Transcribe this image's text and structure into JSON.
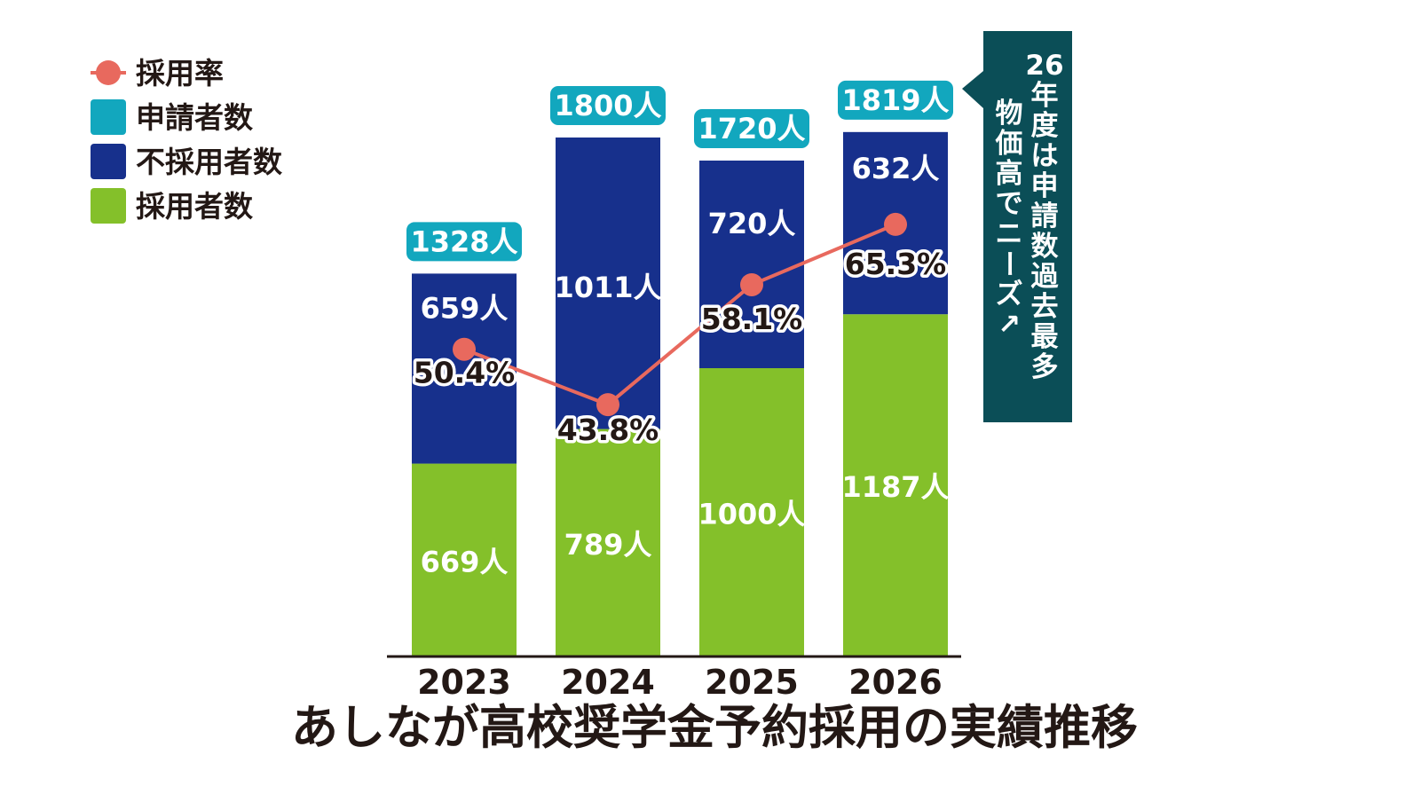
{
  "chart_data": {
    "type": "bar",
    "stacked": true,
    "title": "あしなが高校奨学金予約採用の実績推移",
    "categories": [
      "2023",
      "2024",
      "2025",
      "2026"
    ],
    "series": [
      {
        "name": "採用者数",
        "values": [
          669,
          789,
          1000,
          1187
        ],
        "labels": [
          "669人",
          "789人",
          "1000人",
          "1187人"
        ],
        "color": "#84c02a"
      },
      {
        "name": "不採用者数",
        "values": [
          659,
          1011,
          720,
          632
        ],
        "labels": [
          "659人",
          "1011人",
          "720人",
          "632人"
        ],
        "color": "#17308c"
      }
    ],
    "totals": {
      "name": "申請者数",
      "values": [
        1328,
        1800,
        1720,
        1819
      ],
      "labels": [
        "1328人",
        "1800人",
        "1720人",
        "1819人"
      ],
      "color": "#12a7be"
    },
    "line": {
      "name": "採用率",
      "values": [
        50.4,
        43.8,
        58.1,
        65.3
      ],
      "labels": [
        "50.4%",
        "43.8%",
        "58.1%",
        "65.3%"
      ],
      "color": "#e8695e"
    },
    "ylim": [
      0,
      2000
    ],
    "line_ylim": [
      0,
      100
    ],
    "legend_position": "top-left",
    "legend": [
      "採用率",
      "申請者数",
      "不採用者数",
      "採用者数"
    ],
    "grid": false,
    "annotation": {
      "line1": "26年度は申請数過去最多",
      "line2": "物価高でニーズ↗",
      "color": "#0b4e57"
    }
  }
}
